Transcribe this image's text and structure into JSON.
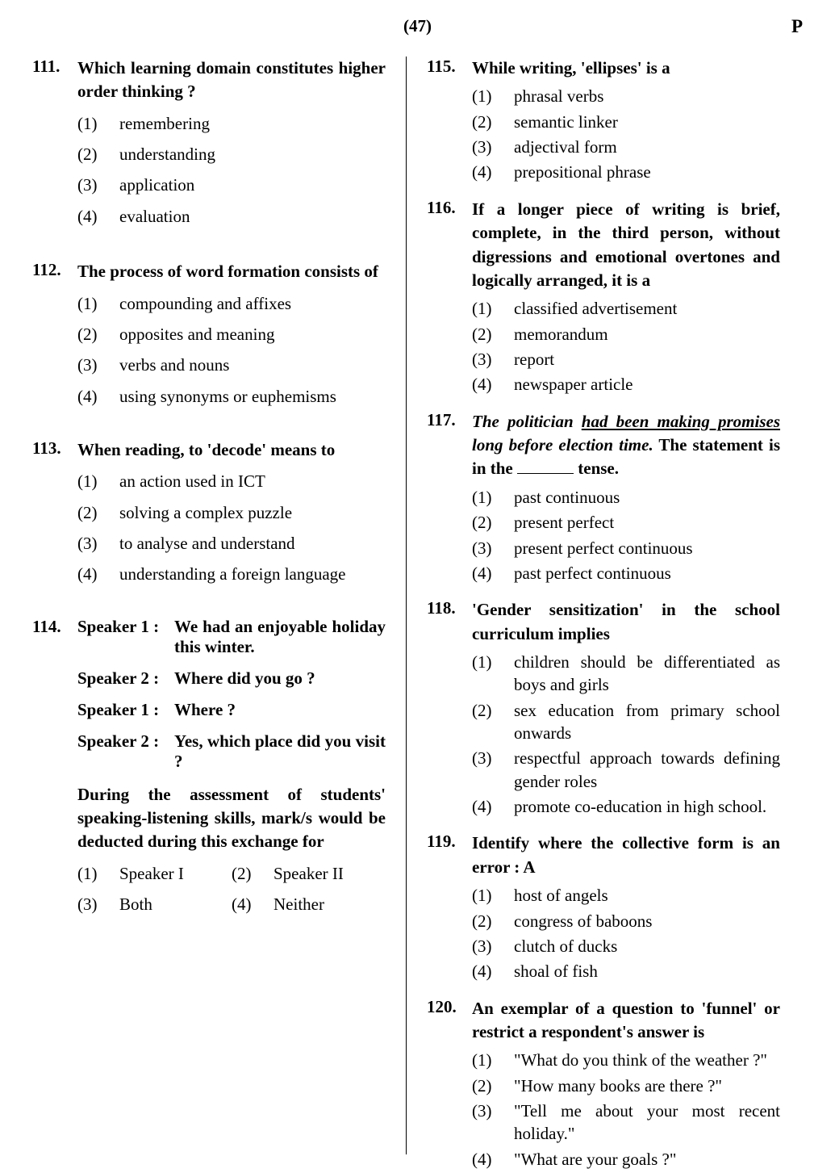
{
  "header": {
    "page_num": "(47)",
    "page_letter": "P"
  },
  "left": [
    {
      "num": "111.",
      "text": "Which learning domain constitutes higher order thinking ?",
      "opts": [
        {
          "n": "(1)",
          "t": "remembering"
        },
        {
          "n": "(2)",
          "t": "understanding"
        },
        {
          "n": "(3)",
          "t": "application"
        },
        {
          "n": "(4)",
          "t": "evaluation"
        }
      ]
    },
    {
      "num": "112.",
      "text": "The process of word formation consists of",
      "opts": [
        {
          "n": "(1)",
          "t": "compounding and affixes"
        },
        {
          "n": "(2)",
          "t": "opposites and meaning"
        },
        {
          "n": "(3)",
          "t": "verbs and nouns"
        },
        {
          "n": "(4)",
          "t": "using synonyms or euphemisms"
        }
      ]
    },
    {
      "num": "113.",
      "text": "When reading, to 'decode' means to",
      "opts": [
        {
          "n": "(1)",
          "t": "an action used in ICT"
        },
        {
          "n": "(2)",
          "t": "solving a complex puzzle"
        },
        {
          "n": "(3)",
          "t": "to analyse and understand"
        },
        {
          "n": "(4)",
          "t": "understanding a foreign language"
        }
      ]
    },
    {
      "num": "114.",
      "speakers": [
        {
          "label": "Speaker 1 :",
          "text": "We had an enjoyable holiday this winter."
        },
        {
          "label": "Speaker 2 :",
          "text": "Where did you go ?"
        },
        {
          "label": "Speaker 1 :",
          "text": "Where ?"
        },
        {
          "label": "Speaker 2 :",
          "text": "Yes, which place did you visit ?"
        }
      ],
      "followup": "During the assessment of students' speaking-listening skills, mark/s would be deducted during this exchange for",
      "opts_row": [
        [
          {
            "n": "(1)",
            "t": "Speaker I"
          },
          {
            "n": "(2)",
            "t": "Speaker II"
          }
        ],
        [
          {
            "n": "(3)",
            "t": "Both"
          },
          {
            "n": "(4)",
            "t": "Neither"
          }
        ]
      ]
    }
  ],
  "right": [
    {
      "num": "115.",
      "text": "While writing, 'ellipses' is a",
      "opts": [
        {
          "n": "(1)",
          "t": "phrasal verbs"
        },
        {
          "n": "(2)",
          "t": "semantic linker"
        },
        {
          "n": "(3)",
          "t": "adjectival form"
        },
        {
          "n": "(4)",
          "t": "prepositional phrase"
        }
      ]
    },
    {
      "num": "116.",
      "text": "If a longer piece of writing is brief, complete, in the third person, without digressions and emotional overtones and logically arranged, it is a",
      "opts": [
        {
          "n": "(1)",
          "t": "classified advertisement"
        },
        {
          "n": "(2)",
          "t": "memorandum"
        },
        {
          "n": "(3)",
          "t": "report"
        },
        {
          "n": "(4)",
          "t": "newspaper article"
        }
      ]
    },
    {
      "num": "117.",
      "html_text": true,
      "italic_part": "The politician ",
      "underline_part": "had been making promises",
      "italic_part2": " long before election time.",
      "plain_part": " The statement is in the ",
      "blank_after": " tense.",
      "opts": [
        {
          "n": "(1)",
          "t": "past continuous"
        },
        {
          "n": "(2)",
          "t": "present perfect"
        },
        {
          "n": "(3)",
          "t": "present perfect continuous"
        },
        {
          "n": "(4)",
          "t": "past perfect continuous"
        }
      ]
    },
    {
      "num": "118.",
      "text": "'Gender sensitization' in the school curriculum implies",
      "opts": [
        {
          "n": "(1)",
          "t": "children should be differentiated as boys and girls"
        },
        {
          "n": "(2)",
          "t": "sex education from primary school onwards"
        },
        {
          "n": "(3)",
          "t": "respectful approach towards defining gender roles"
        },
        {
          "n": "(4)",
          "t": "promote co-education in high school."
        }
      ]
    },
    {
      "num": "119.",
      "text": "Identify where the collective form is an error : A",
      "opts": [
        {
          "n": "(1)",
          "t": "host of angels"
        },
        {
          "n": "(2)",
          "t": "congress of baboons"
        },
        {
          "n": "(3)",
          "t": "clutch of ducks"
        },
        {
          "n": "(4)",
          "t": "shoal of fish"
        }
      ]
    },
    {
      "num": "120.",
      "text": "An exemplar of a question to 'funnel' or restrict a respondent's answer is",
      "opts": [
        {
          "n": "(1)",
          "t": "\"What do you think of the weather ?\""
        },
        {
          "n": "(2)",
          "t": "\"How many books are there ?\""
        },
        {
          "n": "(3)",
          "t": "\"Tell me about your most recent holiday.\""
        },
        {
          "n": "(4)",
          "t": "\"What are your goals ?\""
        }
      ]
    }
  ]
}
